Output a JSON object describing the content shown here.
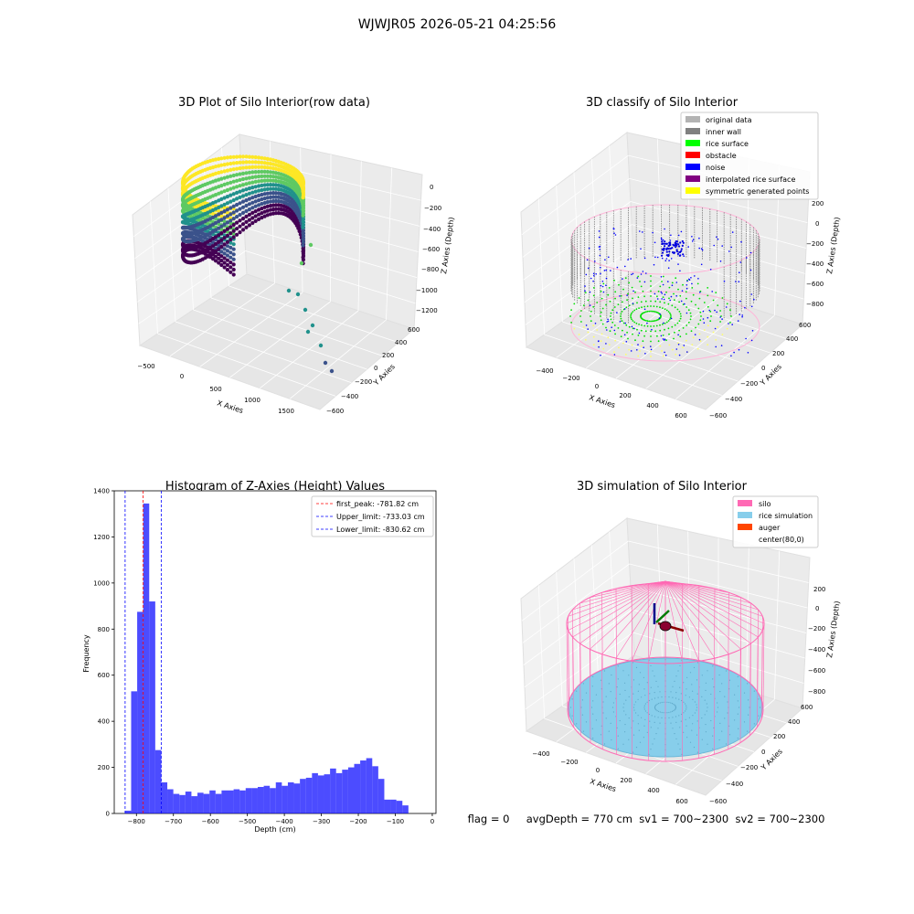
{
  "suptitle": "WJWJR05 2026-05-21 04:25:56",
  "panel_raw": {
    "title": "3D Plot of Silo Interior(row data)",
    "xlabel": "X Axies",
    "ylabel": "Y Axies",
    "zlabel": "Z Axies (Depth)",
    "xticks": [
      "−500",
      "0",
      "500",
      "1000",
      "1500"
    ],
    "yticks": [
      "600",
      "400",
      "200",
      "0",
      "−200",
      "−400",
      "−600"
    ],
    "zticks": [
      "0",
      "−200",
      "−400",
      "−600",
      "−800",
      "−1000",
      "−1200"
    ],
    "colormap": [
      "#440154",
      "#3b528b",
      "#21918c",
      "#5ec962",
      "#fde725"
    ]
  },
  "panel_classify": {
    "title": "3D classify of Silo Interior",
    "xlabel": "X Axies",
    "ylabel": "Y Axies",
    "zlabel": "Z Axies (Depth)",
    "xticks": [
      "−400",
      "−200",
      "0",
      "200",
      "400",
      "600"
    ],
    "yticks": [
      "600",
      "400",
      "200",
      "0",
      "−200",
      "−400",
      "−600"
    ],
    "zticks": [
      "200",
      "0",
      "−200",
      "−400",
      "−600",
      "−800"
    ],
    "legend": [
      {
        "label": "original data",
        "color": "#b3b3b3"
      },
      {
        "label": "inner wall",
        "color": "#808080"
      },
      {
        "label": "rice surface",
        "color": "#00ff00"
      },
      {
        "label": "obstacle",
        "color": "#ff0000"
      },
      {
        "label": "noise",
        "color": "#0000ff"
      },
      {
        "label": "interpolated rice surface",
        "color": "#800080"
      },
      {
        "label": "symmetric generated points",
        "color": "#ffff00"
      }
    ]
  },
  "panel_sim": {
    "title": "3D simulation of Silo Interior",
    "xlabel": "X Axies",
    "ylabel": "Y Axies",
    "zlabel": "Z Axies (Depth)",
    "xticks": [
      "−400",
      "−200",
      "0",
      "200",
      "400",
      "600"
    ],
    "yticks": [
      "600",
      "400",
      "200",
      "0",
      "−200",
      "−400",
      "−600"
    ],
    "zticks": [
      "200",
      "0",
      "−200",
      "−400",
      "−600",
      "−800"
    ],
    "legend": [
      {
        "label": "silo",
        "color": "#ff69b4"
      },
      {
        "label": "rice simulation",
        "color": "#87ceeb"
      },
      {
        "label": "auger",
        "color": "#ff4500"
      },
      {
        "label": "center(80,0)",
        "color": ""
      }
    ]
  },
  "status_line": "flag = 0     avgDepth = 770 cm  sv1 = 700~2300  sv2 = 700~2300",
  "chart_data": [
    {
      "type": "bar",
      "title": "Histogram of Z-Axies (Height) Values",
      "xlabel": "Depth (cm)",
      "ylabel": "Frequency",
      "xlim": [
        -860,
        10
      ],
      "ylim": [
        0,
        1400
      ],
      "xticks": [
        -800,
        -700,
        -600,
        -500,
        -400,
        -300,
        -200,
        -100,
        0
      ],
      "xtick_labels": [
        "−800",
        "−700",
        "−600",
        "−500",
        "−400",
        "−300",
        "−200",
        "−100",
        "0"
      ],
      "yticks": [
        0,
        200,
        400,
        600,
        800,
        1000,
        1200,
        1400
      ],
      "bar_color": "#0000ff",
      "bar_opacity": 0.7,
      "bin_width": 16.3,
      "bin_starts": [
        -830.62,
        -814.32,
        -798.02,
        -781.72,
        -765.42,
        -749.12,
        -732.82,
        -716.52,
        -700.22,
        -683.92,
        -667.62,
        -651.32,
        -635.02,
        -618.72,
        -602.42,
        -586.12,
        -569.82,
        -553.52,
        -537.22,
        -520.92,
        -504.62,
        -488.32,
        -472.02,
        -455.72,
        -439.42,
        -423.12,
        -406.82,
        -390.52,
        -374.22,
        -357.92,
        -341.62,
        -325.32,
        -309.02,
        -292.72,
        -276.42,
        -260.12,
        -243.82,
        -227.52,
        -211.22,
        -194.92,
        -178.62,
        -162.32,
        -146.02,
        -129.72,
        -113.42,
        -97.12,
        -80.82,
        -64.52,
        -48.22,
        -31.92
      ],
      "values": [
        12,
        530,
        875,
        1345,
        920,
        275,
        135,
        105,
        85,
        80,
        95,
        75,
        90,
        85,
        100,
        85,
        100,
        100,
        105,
        100,
        110,
        110,
        115,
        120,
        110,
        135,
        120,
        135,
        130,
        150,
        155,
        175,
        165,
        170,
        195,
        175,
        190,
        200,
        215,
        230,
        240,
        205,
        150,
        60,
        60,
        55,
        35,
        0,
        0,
        0
      ],
      "bins_used": 47,
      "vlines": [
        {
          "x": -781.82,
          "label": "first_peak: -781.82 cm",
          "color": "#ff0000"
        },
        {
          "x": -733.03,
          "label": "Upper_limit: -733.03 cm",
          "color": "#0000ff"
        },
        {
          "x": -830.62,
          "label": "Lower_limit: -830.62 cm",
          "color": "#0000ff"
        }
      ],
      "legend_position": "top-right"
    }
  ]
}
